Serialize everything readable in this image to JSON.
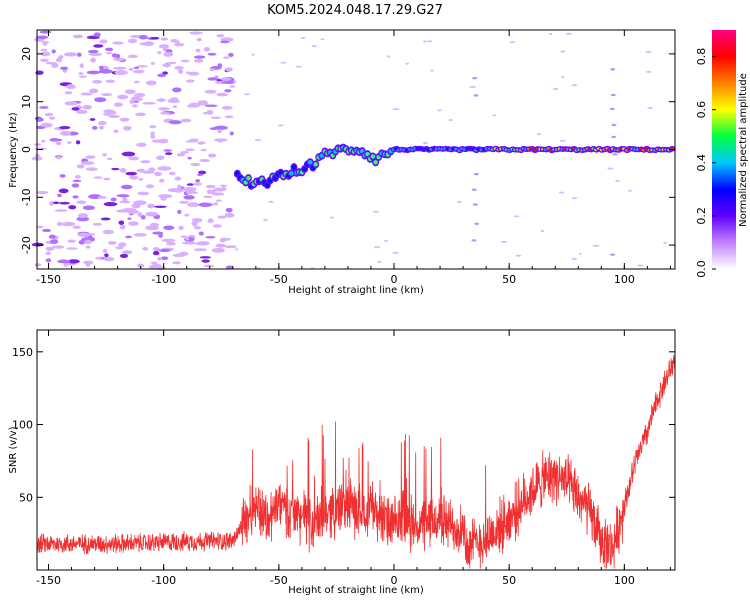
{
  "chart_data": [
    {
      "type": "heatmap",
      "title": "KOM5.2024.048.17.29.G27",
      "xlabel": "Height of straight line (km)",
      "ylabel": "Frequency (Hz)",
      "xlim": [
        -155,
        122
      ],
      "ylim": [
        -25,
        25
      ],
      "x_ticks": [
        -150,
        -100,
        -50,
        0,
        50,
        100
      ],
      "y_ticks": [
        -20,
        -10,
        0,
        10,
        20
      ],
      "grid": false,
      "signal_track": [
        {
          "x": -68,
          "y": -5
        },
        {
          "x": -62,
          "y": -7
        },
        {
          "x": -55,
          "y": -7
        },
        {
          "x": -48,
          "y": -5
        },
        {
          "x": -40,
          "y": -4
        },
        {
          "x": -34,
          "y": -3
        },
        {
          "x": -30,
          "y": -1
        },
        {
          "x": -22,
          "y": 0
        },
        {
          "x": -15,
          "y": 0
        },
        {
          "x": -8,
          "y": -2
        },
        {
          "x": -4,
          "y": -1
        },
        {
          "x": 0,
          "y": 0
        },
        {
          "x": 20,
          "y": 0
        },
        {
          "x": 60,
          "y": 0
        },
        {
          "x": 100,
          "y": 0
        },
        {
          "x": 122,
          "y": 0
        }
      ],
      "colorbar": {
        "label": "Normalized spectral amplitude",
        "range": [
          0.0,
          0.9
        ],
        "ticks": [
          0.0,
          0.2,
          0.4,
          0.6,
          0.8
        ],
        "colors": [
          "#ffffff",
          "#c080ff",
          "#6000ff",
          "#0000ff",
          "#00c8ff",
          "#00ff40",
          "#ffff00",
          "#ff8000",
          "#ff0000",
          "#ff0080"
        ]
      }
    },
    {
      "type": "line",
      "title": "",
      "xlabel": "Height of straight line (km)",
      "ylabel": "SNR (v/v)",
      "xlim": [
        -155,
        122
      ],
      "ylim": [
        0,
        165
      ],
      "x_ticks": [
        -150,
        -100,
        -50,
        0,
        50,
        100
      ],
      "y_ticks": [
        50,
        100,
        150
      ],
      "grid": false,
      "color": "#f03030",
      "series": [
        {
          "x": [
            -155,
            -140,
            -120,
            -100,
            -80,
            -70,
            -66,
            -63,
            -60,
            -55,
            -50,
            -45,
            -40,
            -35,
            -30,
            -25,
            -20,
            -15,
            -10,
            -5,
            0,
            5,
            10,
            15,
            20,
            25,
            30,
            32,
            40,
            50,
            60,
            65,
            70,
            75,
            80,
            85,
            90,
            95,
            100,
            105,
            110,
            115,
            122
          ],
          "values": [
            18,
            18,
            18,
            19,
            20,
            20,
            30,
            40,
            45,
            35,
            45,
            40,
            38,
            30,
            40,
            42,
            45,
            40,
            45,
            35,
            30,
            35,
            30,
            32,
            35,
            30,
            28,
            15,
            22,
            35,
            55,
            62,
            65,
            60,
            50,
            40,
            20,
            15,
            45,
            75,
            95,
            120,
            145
          ]
        }
      ]
    }
  ]
}
